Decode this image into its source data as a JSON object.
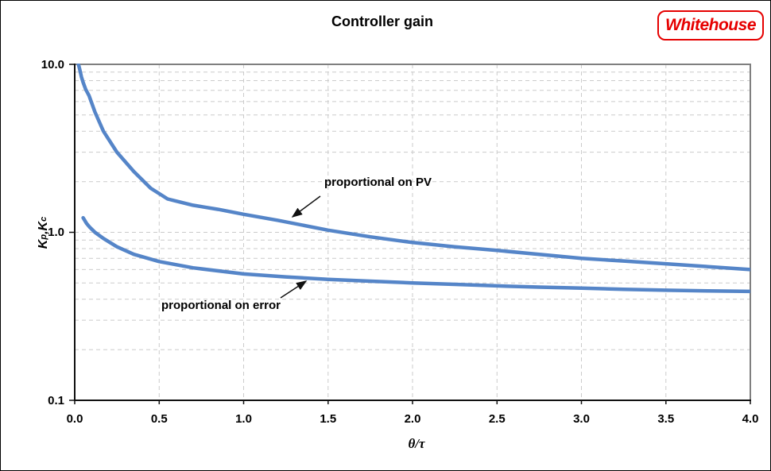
{
  "header": {
    "title": "Controller gain",
    "logo_text": "Whitehouse"
  },
  "colors": {
    "curve_blue": "#5585C8",
    "grid_gray": "#CBCBCB",
    "axis_black": "#111111",
    "plot_border_gray": "#7F7F7F",
    "logo_red": "#e60000",
    "background": "#ffffff"
  },
  "chart_data": {
    "type": "line",
    "title": "Controller gain",
    "xlabel": "θ/τ",
    "ylabel": "Kp,Kc",
    "ylabel_parts": {
      "k1": "K",
      "s1": "p",
      "sep": ",",
      "k2": "K",
      "s2": "c"
    },
    "x_scale": "linear",
    "y_scale": "log",
    "xlim": [
      0,
      4
    ],
    "ylim": [
      0.1,
      10
    ],
    "x_ticks": [
      0.0,
      0.5,
      1.0,
      1.5,
      2.0,
      2.5,
      3.0,
      3.5,
      4.0
    ],
    "x_tick_labels": [
      "0.0",
      "0.5",
      "1.0",
      "1.5",
      "2.0",
      "2.5",
      "3.0",
      "3.5",
      "4.0"
    ],
    "y_ticks": [
      10,
      1,
      0.1
    ],
    "y_tick_labels": [
      "10.0",
      "1.0",
      "0.1"
    ],
    "grid": "dashed-minor",
    "grid_y_values": [
      0.2,
      0.3,
      0.4,
      0.5,
      0.6,
      0.7,
      0.8,
      0.9,
      1,
      2,
      3,
      4,
      5,
      6,
      7,
      8,
      9
    ],
    "grid_x_values": [
      0.5,
      1.0,
      1.5,
      2.0,
      2.5,
      3.0,
      3.5
    ],
    "legend_position": "none",
    "series": [
      {
        "name": "proportional on PV",
        "x": [
          0.022,
          0.03,
          0.04,
          0.05,
          0.065,
          0.085,
          0.12,
          0.17,
          0.25,
          0.35,
          0.45,
          0.55,
          0.7,
          0.85,
          1.0,
          1.2,
          1.5,
          1.75,
          2.0,
          2.25,
          2.5,
          2.75,
          3.0,
          3.25,
          3.5,
          3.75,
          4.0
        ],
        "y": [
          10.0,
          9.3,
          8.4,
          7.8,
          7.1,
          6.5,
          5.2,
          4.0,
          3.0,
          2.3,
          1.83,
          1.58,
          1.45,
          1.37,
          1.28,
          1.18,
          1.03,
          0.94,
          0.87,
          0.82,
          0.78,
          0.74,
          0.7,
          0.675,
          0.65,
          0.625,
          0.6
        ]
      },
      {
        "name": "proportional on error",
        "x": [
          0.05,
          0.07,
          0.09,
          0.12,
          0.17,
          0.25,
          0.35,
          0.5,
          0.7,
          1.0,
          1.25,
          1.5,
          1.75,
          2.0,
          2.25,
          2.5,
          2.75,
          3.0,
          3.25,
          3.5,
          3.75,
          4.0
        ],
        "y": [
          1.22,
          1.13,
          1.07,
          1.0,
          0.92,
          0.82,
          0.74,
          0.67,
          0.615,
          0.565,
          0.543,
          0.525,
          0.512,
          0.5,
          0.49,
          0.48,
          0.472,
          0.465,
          0.458,
          0.452,
          0.448,
          0.445
        ]
      }
    ],
    "annotations": [
      {
        "text": "proportional on PV"
      },
      {
        "text": "proportional on error"
      }
    ]
  }
}
